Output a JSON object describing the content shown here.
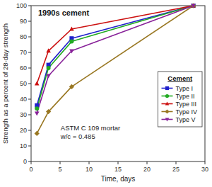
{
  "chart_data": {
    "type": "line",
    "title": "1990s cement",
    "x_label": "Time, days",
    "y_label": "Strength as a percent of 28-day strength",
    "annotation": "ASTM C 109 mortar\nw/c = 0.485",
    "legend_title": "Cement",
    "x": [
      1,
      3,
      7,
      28
    ],
    "series": [
      {
        "name": "Type I",
        "color": "#2020cc",
        "marker": "square",
        "values": [
          36,
          62,
          79,
          100
        ]
      },
      {
        "name": "Type II",
        "color": "#22aa22",
        "marker": "circle",
        "values": [
          34,
          60,
          77,
          100
        ]
      },
      {
        "name": "Type III",
        "color": "#cc1111",
        "marker": "triangle-up",
        "values": [
          50,
          71,
          85,
          100
        ]
      },
      {
        "name": "Type IV",
        "color": "#997722",
        "marker": "diamond",
        "values": [
          18,
          32,
          48,
          100
        ]
      },
      {
        "name": "Type V",
        "color": "#882299",
        "marker": "triangle-down",
        "values": [
          31,
          55,
          71,
          100
        ]
      }
    ],
    "xlim": [
      0,
      30
    ],
    "ylim": [
      0,
      100
    ],
    "xticks": [
      0,
      5,
      10,
      15,
      20,
      25,
      30
    ],
    "yticks": [
      0,
      10,
      20,
      30,
      40,
      50,
      60,
      70,
      80,
      90,
      100
    ],
    "grid": false,
    "legend": "right"
  }
}
